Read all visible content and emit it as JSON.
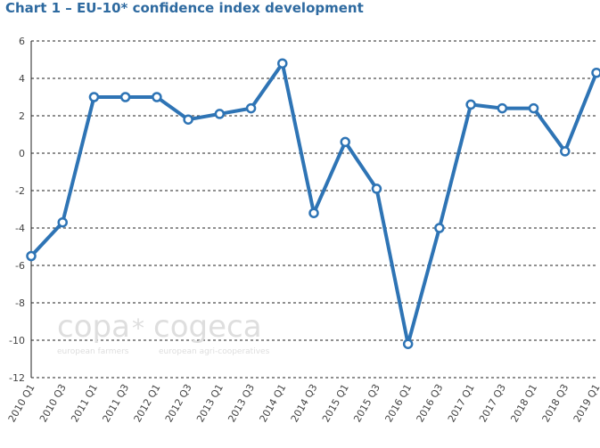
{
  "colors": {
    "title": "#2e6aa0",
    "series": "#2e74b5"
  },
  "watermark": {
    "main_left": "copa",
    "star": "*",
    "main_right": "cogeca",
    "sub_left": "european farmers",
    "sub_right": "european agri-cooperatives"
  },
  "chart_data": {
    "type": "line",
    "title": "Chart 1 – EU-10* confidence index development",
    "xlabel": "",
    "ylabel": "",
    "ylim": [
      -12,
      6
    ],
    "yticks": [
      6,
      4,
      2,
      0,
      -2,
      -4,
      -6,
      -8,
      -10,
      -12
    ],
    "grid": true,
    "x_tick_labels": [
      "2010 Q1",
      "2010 Q3",
      "2011 Q1",
      "2011 Q3",
      "2012 Q1",
      "2012 Q3",
      "2013 Q1",
      "2013 Q3",
      "2014 Q1",
      "2014 Q3",
      "2015 Q1",
      "2015 Q3",
      "2016 Q1",
      "2016 Q3",
      "2017 Q1",
      "2017 Q3",
      "2018 Q1",
      "2018 Q3",
      "2019 Q1"
    ],
    "series": [
      {
        "name": "EU-10* confidence index",
        "values": [
          -5.5,
          -3.7,
          3.0,
          3.0,
          3.0,
          1.8,
          2.1,
          2.4,
          4.8,
          -3.2,
          0.6,
          -1.9,
          -10.2,
          -4.0,
          2.6,
          2.4,
          2.4,
          0.1,
          4.3
        ]
      }
    ]
  }
}
